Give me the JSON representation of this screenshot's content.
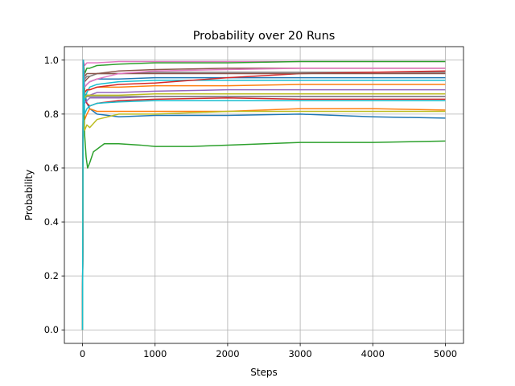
{
  "chart_data": {
    "type": "line",
    "title": "Probability over 20 Runs",
    "xlabel": "Steps",
    "ylabel": "Probability",
    "xlim": [
      -250,
      5250
    ],
    "ylim": [
      -0.05,
      1.05
    ],
    "xticks": [
      0,
      1000,
      2000,
      3000,
      4000,
      5000
    ],
    "yticks": [
      0.0,
      0.2,
      0.4,
      0.6,
      0.8,
      1.0
    ],
    "ytick_labels": [
      "0.0",
      "0.2",
      "0.4",
      "0.6",
      "0.8",
      "1.0"
    ],
    "grid": true,
    "legend": "none",
    "series": [
      {
        "color": "#1f77b4",
        "final": 0.785,
        "x": [
          0,
          10,
          30,
          60,
          100,
          200,
          500,
          1000,
          2000,
          3000,
          4000,
          5000
        ],
        "y": [
          0.0,
          1.0,
          0.88,
          0.84,
          0.82,
          0.8,
          0.79,
          0.795,
          0.795,
          0.8,
          0.79,
          0.785
        ]
      },
      {
        "color": "#ff7f0e",
        "final": 0.815,
        "x": [
          0,
          10,
          30,
          60,
          100,
          200,
          500,
          1000,
          2000,
          3000,
          4000,
          5000
        ],
        "y": [
          0.0,
          0.85,
          0.78,
          0.8,
          0.82,
          0.81,
          0.81,
          0.81,
          0.81,
          0.82,
          0.82,
          0.815
        ]
      },
      {
        "color": "#2ca02c",
        "final": 0.7,
        "x": [
          0,
          10,
          30,
          50,
          70,
          100,
          150,
          200,
          300,
          500,
          800,
          1000,
          1500,
          2000,
          3000,
          4000,
          5000
        ],
        "y": [
          0.0,
          0.95,
          0.72,
          0.64,
          0.6,
          0.62,
          0.66,
          0.67,
          0.69,
          0.69,
          0.685,
          0.68,
          0.68,
          0.685,
          0.695,
          0.695,
          0.7
        ]
      },
      {
        "color": "#d62728",
        "final": 0.855,
        "x": [
          0,
          10,
          30,
          60,
          100,
          200,
          500,
          1000,
          2000,
          3000,
          4000,
          5000
        ],
        "y": [
          0.0,
          1.0,
          0.86,
          0.84,
          0.83,
          0.84,
          0.85,
          0.855,
          0.86,
          0.855,
          0.855,
          0.855
        ]
      },
      {
        "color": "#9467bd",
        "final": 0.89,
        "x": [
          0,
          10,
          30,
          60,
          100,
          200,
          500,
          1000,
          2000,
          3000,
          4000,
          5000
        ],
        "y": [
          0.0,
          0.9,
          0.86,
          0.87,
          0.87,
          0.88,
          0.88,
          0.885,
          0.89,
          0.89,
          0.89,
          0.89
        ]
      },
      {
        "color": "#8c564b",
        "final": 0.97,
        "x": [
          0,
          10,
          30,
          60,
          100,
          200,
          500,
          1000,
          2000,
          3000,
          4000,
          5000
        ],
        "y": [
          0.0,
          1.0,
          0.92,
          0.93,
          0.94,
          0.95,
          0.96,
          0.965,
          0.97,
          0.97,
          0.97,
          0.97
        ]
      },
      {
        "color": "#e377c2",
        "final": 0.995,
        "x": [
          0,
          10,
          30,
          60,
          100,
          200,
          500,
          1000,
          2000,
          3000,
          4000,
          5000
        ],
        "y": [
          0.0,
          1.0,
          0.98,
          0.99,
          0.99,
          0.99,
          0.995,
          0.995,
          0.995,
          0.995,
          0.995,
          0.995
        ]
      },
      {
        "color": "#7f7f7f",
        "final": 0.955,
        "x": [
          0,
          10,
          30,
          60,
          100,
          200,
          500,
          1000,
          2000,
          3000,
          4000,
          5000
        ],
        "y": [
          0.0,
          1.0,
          0.93,
          0.94,
          0.94,
          0.95,
          0.95,
          0.955,
          0.955,
          0.955,
          0.955,
          0.955
        ]
      },
      {
        "color": "#bcbd22",
        "final": 0.81,
        "x": [
          0,
          10,
          30,
          60,
          100,
          200,
          500,
          1000,
          2000,
          3000,
          4000,
          5000
        ],
        "y": [
          0.0,
          0.8,
          0.74,
          0.76,
          0.75,
          0.78,
          0.8,
          0.8,
          0.81,
          0.81,
          0.81,
          0.81
        ]
      },
      {
        "color": "#17becf",
        "final": 0.925,
        "x": [
          0,
          10,
          30,
          60,
          100,
          200,
          500,
          1000,
          2000,
          3000,
          4000,
          5000
        ],
        "y": [
          0.0,
          1.0,
          0.85,
          0.88,
          0.9,
          0.91,
          0.92,
          0.925,
          0.925,
          0.925,
          0.925,
          0.925
        ]
      },
      {
        "color": "#1f77b4",
        "final": 0.935,
        "x": [
          0,
          10,
          30,
          60,
          100,
          200,
          500,
          1000,
          2000,
          3000,
          4000,
          5000
        ],
        "y": [
          0.0,
          1.0,
          0.9,
          0.91,
          0.92,
          0.93,
          0.93,
          0.935,
          0.935,
          0.935,
          0.935,
          0.935
        ]
      },
      {
        "color": "#ff7f0e",
        "final": 0.91,
        "x": [
          0,
          10,
          30,
          60,
          100,
          200,
          500,
          1000,
          2000,
          3000,
          4000,
          5000
        ],
        "y": [
          0.0,
          0.95,
          0.88,
          0.89,
          0.89,
          0.9,
          0.9,
          0.905,
          0.905,
          0.91,
          0.91,
          0.91
        ]
      },
      {
        "color": "#2ca02c",
        "final": 0.995,
        "x": [
          0,
          10,
          30,
          60,
          100,
          200,
          500,
          1000,
          2000,
          3000,
          4000,
          5000
        ],
        "y": [
          0.0,
          1.0,
          0.95,
          0.97,
          0.97,
          0.98,
          0.985,
          0.99,
          0.99,
          0.995,
          0.995,
          0.995
        ]
      },
      {
        "color": "#d62728",
        "final": 0.96,
        "x": [
          0,
          10,
          30,
          60,
          100,
          200,
          500,
          1000,
          2000,
          3000,
          4000,
          5000
        ],
        "y": [
          0.0,
          1.0,
          0.88,
          0.89,
          0.89,
          0.9,
          0.91,
          0.915,
          0.935,
          0.95,
          0.955,
          0.96
        ]
      },
      {
        "color": "#9467bd",
        "final": 0.865,
        "x": [
          0,
          10,
          30,
          60,
          100,
          200,
          500,
          1000,
          2000,
          3000,
          4000,
          5000
        ],
        "y": [
          0.0,
          0.88,
          0.84,
          0.85,
          0.86,
          0.86,
          0.86,
          0.865,
          0.865,
          0.865,
          0.865,
          0.865
        ]
      },
      {
        "color": "#8c564b",
        "final": 0.95,
        "x": [
          0,
          10,
          30,
          60,
          100,
          200,
          500,
          1000,
          2000,
          3000,
          4000,
          5000
        ],
        "y": [
          0.0,
          1.0,
          0.94,
          0.95,
          0.95,
          0.95,
          0.95,
          0.95,
          0.95,
          0.95,
          0.95,
          0.95
        ]
      },
      {
        "color": "#e377c2",
        "final": 0.97,
        "x": [
          0,
          10,
          30,
          60,
          100,
          200,
          500,
          1000,
          2000,
          3000,
          4000,
          5000
        ],
        "y": [
          0.0,
          1.0,
          0.9,
          0.91,
          0.92,
          0.93,
          0.95,
          0.96,
          0.965,
          0.97,
          0.97,
          0.97
        ]
      },
      {
        "color": "#7f7f7f",
        "final": 0.865,
        "x": [
          0,
          10,
          30,
          60,
          100,
          200,
          500,
          1000,
          2000,
          3000,
          4000,
          5000
        ],
        "y": [
          0.0,
          0.9,
          0.86,
          0.865,
          0.865,
          0.865,
          0.865,
          0.865,
          0.865,
          0.865,
          0.865,
          0.865
        ]
      },
      {
        "color": "#bcbd22",
        "final": 0.875,
        "x": [
          0,
          10,
          30,
          60,
          100,
          200,
          500,
          1000,
          2000,
          3000,
          4000,
          5000
        ],
        "y": [
          0.0,
          0.95,
          0.86,
          0.87,
          0.87,
          0.87,
          0.87,
          0.875,
          0.875,
          0.875,
          0.875,
          0.875
        ]
      },
      {
        "color": "#17becf",
        "final": 0.85,
        "x": [
          0,
          10,
          30,
          60,
          100,
          200,
          500,
          1000,
          2000,
          3000,
          4000,
          5000
        ],
        "y": [
          0.0,
          1.0,
          0.8,
          0.82,
          0.83,
          0.84,
          0.845,
          0.85,
          0.85,
          0.85,
          0.85,
          0.85
        ]
      }
    ]
  }
}
